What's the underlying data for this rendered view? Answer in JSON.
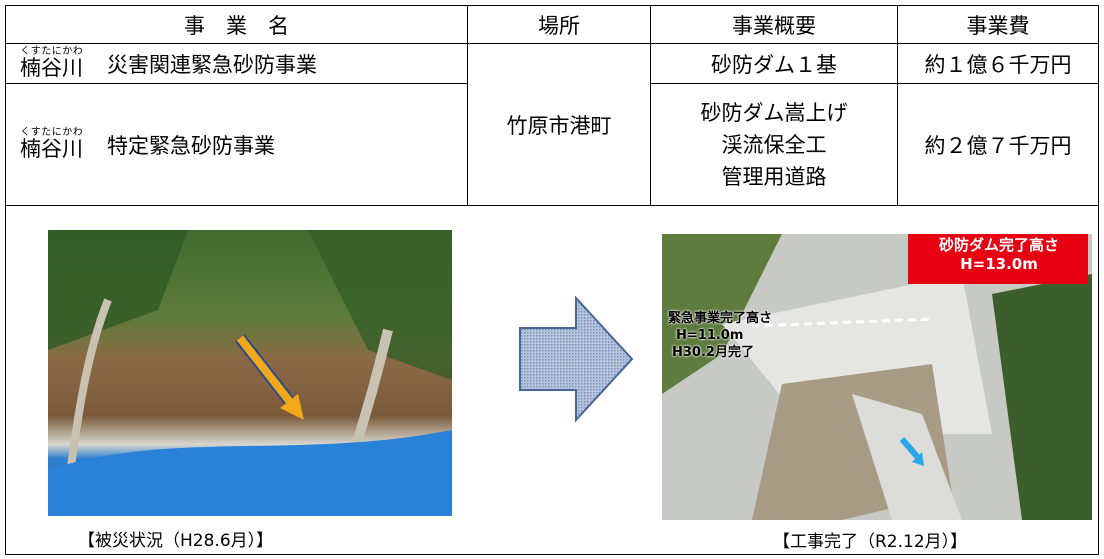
{
  "table": {
    "header": [
      "事　業　名",
      "場所",
      "事業概要",
      "事業費"
    ],
    "rows": [
      {
        "name_ruby": "くすたにかわ",
        "name_base": "楠谷川",
        "name": "災害関連緊急砂防事業",
        "summary": [
          "砂防ダム１基"
        ],
        "cost": "約１億６千万円"
      },
      {
        "name_ruby": "くすたにかわ",
        "name_base": "楠谷川",
        "name": "特定緊急砂防事業",
        "summary": [
          "砂防ダム嵩上げ",
          "渓流保全工",
          "管理用道路"
        ],
        "cost": "約２億７千万円"
      }
    ],
    "location": "竹原市港町"
  },
  "photos": [
    {
      "caption": "【被災状況（H28.6月）】"
    },
    {
      "caption": "【工事完了（R2.12月）】",
      "final_height": [
        "砂防ダム完了高さ",
        "H=13.0m"
      ],
      "emergency_height": [
        "緊急事業完了高さ",
        "H=11.0m",
        "H30.2月完了"
      ]
    }
  ]
}
